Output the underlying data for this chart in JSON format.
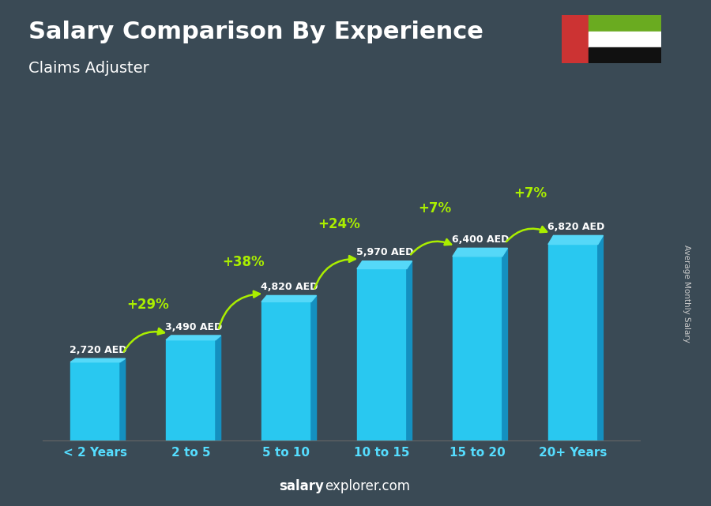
{
  "title": "Salary Comparison By Experience",
  "subtitle": "Claims Adjuster",
  "categories": [
    "< 2 Years",
    "2 to 5",
    "5 to 10",
    "10 to 15",
    "15 to 20",
    "20+ Years"
  ],
  "values": [
    2720,
    3490,
    4820,
    5970,
    6400,
    6820
  ],
  "bar_face_color": "#29c8f0",
  "bar_side_color": "#1490c0",
  "bar_top_color": "#55d8f8",
  "pct_labels": [
    "+29%",
    "+38%",
    "+24%",
    "+7%",
    "+7%"
  ],
  "aed_labels": [
    "2,720 AED",
    "3,490 AED",
    "4,820 AED",
    "5,970 AED",
    "6,400 AED",
    "6,820 AED"
  ],
  "ylabel": "Average Monthly Salary",
  "footer_normal": "explorer.com",
  "footer_bold": "salary",
  "bg_color": "#3a4a55",
  "pct_color": "#aaee00",
  "arrow_color": "#aaee00",
  "label_color": "#ffffff",
  "title_color": "#ffffff",
  "subtitle_color": "#ffffff",
  "xticklabel_color": "#55ddff",
  "footer_color": "#ffffff",
  "ylabel_color": "#cccccc",
  "flag_green": "#6aab20",
  "flag_red": "#cc3333",
  "flag_white": "#ffffff",
  "flag_black": "#111111"
}
